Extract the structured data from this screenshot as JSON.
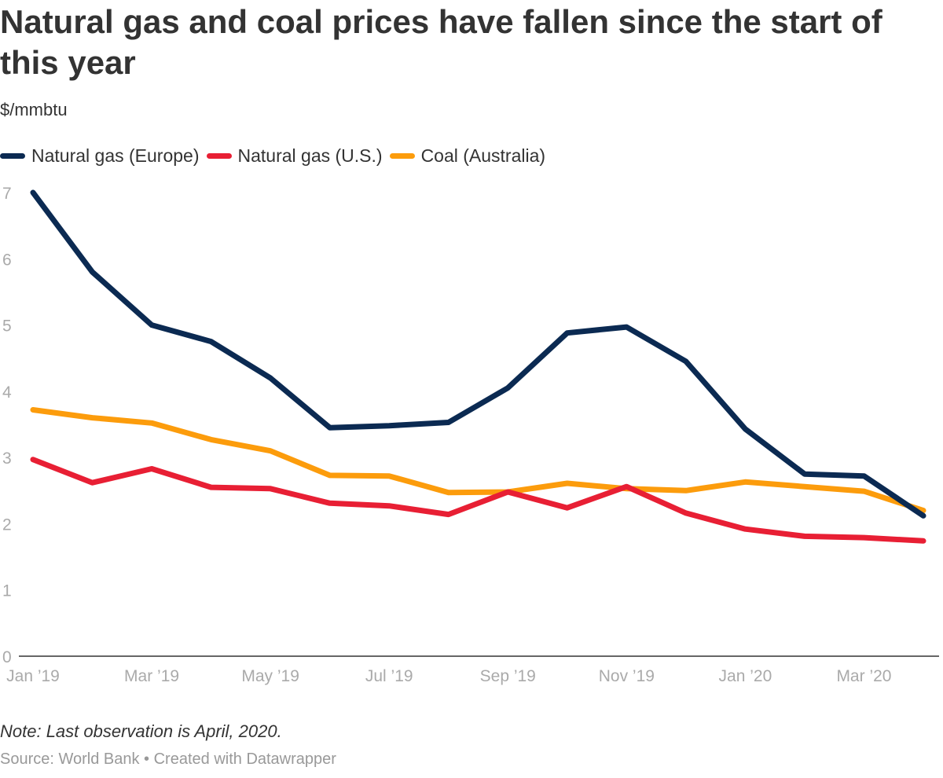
{
  "header": {
    "title": "Natural gas and coal prices have fallen since the start of this year",
    "subtitle": "$/mmbtu"
  },
  "footer": {
    "note": "Note: Last observation is April, 2020.",
    "source": "Source: World Bank • Created with Datawrapper"
  },
  "chart_data": {
    "type": "line",
    "title": "Natural gas and coal prices have fallen since the start of this year",
    "ylabel": "$/mmbtu",
    "xlabel": "",
    "ylim": [
      0,
      7
    ],
    "yticks": [
      0,
      1,
      2,
      3,
      4,
      5,
      6,
      7
    ],
    "grid": false,
    "legend": "top-left",
    "x": [
      "Jan 2019",
      "Feb 2019",
      "Mar 2019",
      "Apr 2019",
      "May 2019",
      "Jun 2019",
      "Jul 2019",
      "Aug 2019",
      "Sep 2019",
      "Oct 2019",
      "Nov 2019",
      "Dec 2019",
      "Jan 2020",
      "Feb 2020",
      "Mar 2020",
      "Apr 2020"
    ],
    "xtick_labels": [
      "Jan ’19",
      "",
      "Mar ’19",
      "",
      "May ’19",
      "",
      "Jul ’19",
      "",
      "Sep ’19",
      "",
      "Nov ’19",
      "",
      "Jan ’20",
      "",
      "Mar ’20",
      ""
    ],
    "series": [
      {
        "name": "Natural gas (Europe)",
        "color": "#0b2a52",
        "values": [
          7.0,
          5.8,
          5.0,
          4.75,
          4.2,
          3.45,
          3.48,
          3.53,
          4.05,
          4.88,
          4.97,
          4.45,
          3.43,
          2.75,
          2.72,
          2.12
        ]
      },
      {
        "name": "Natural gas (U.S.)",
        "color": "#e81f34",
        "values": [
          2.97,
          2.62,
          2.83,
          2.55,
          2.53,
          2.31,
          2.27,
          2.14,
          2.48,
          2.24,
          2.56,
          2.16,
          1.92,
          1.81,
          1.79,
          1.74
        ]
      },
      {
        "name": "Coal (Australia)",
        "color": "#fc9c0c",
        "values": [
          3.72,
          3.6,
          3.52,
          3.27,
          3.1,
          2.73,
          2.72,
          2.47,
          2.48,
          2.61,
          2.53,
          2.5,
          2.63,
          2.56,
          2.49,
          2.2
        ]
      }
    ]
  }
}
